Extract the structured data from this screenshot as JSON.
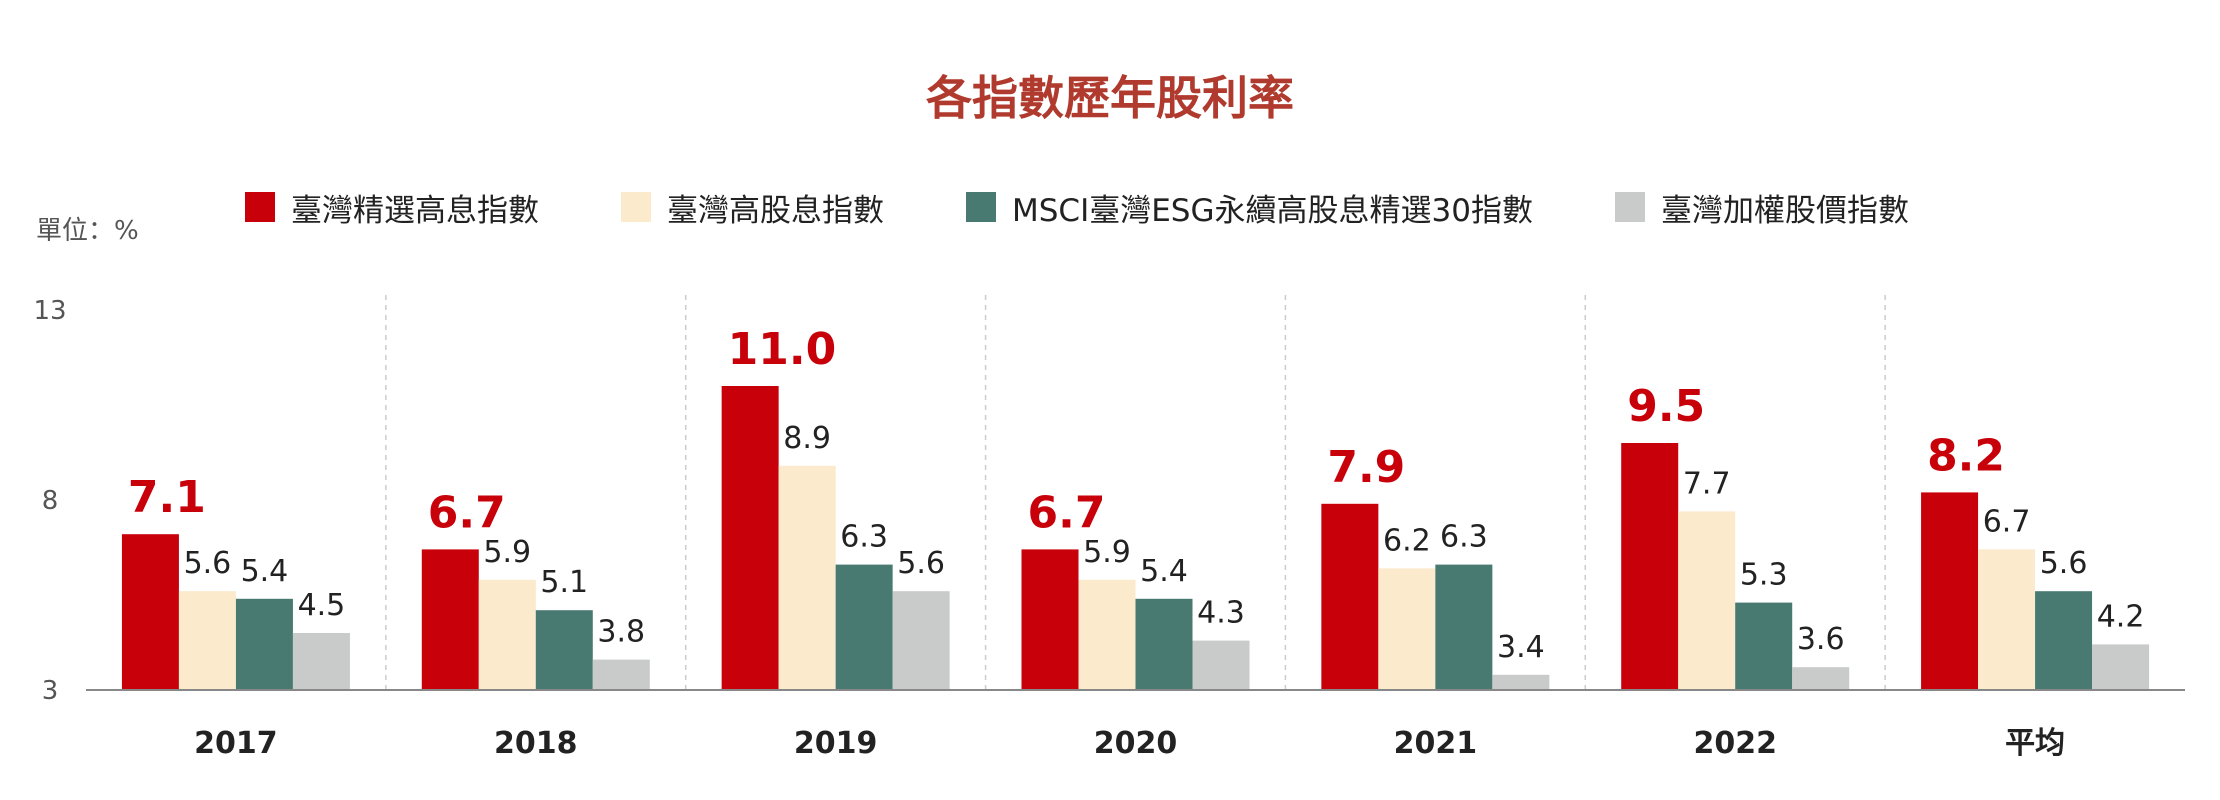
{
  "title": "各指數歷年股利率",
  "unit_label": "單位：%",
  "colors": {
    "title": "#B03A2E",
    "axis": "#888888",
    "grid": "#cccccc",
    "label_default": "#222222",
    "label_highlight": "#C8000A"
  },
  "chart_data": {
    "type": "bar",
    "title": "各指數歷年股利率",
    "ylabel": "單位：%",
    "ylim": [
      3,
      13
    ],
    "yticks": [
      "3",
      "8",
      "13"
    ],
    "categories": [
      "2017",
      "2018",
      "2019",
      "2020",
      "2021",
      "2022",
      "平均"
    ],
    "legend_position": "top",
    "series": [
      {
        "name": "臺灣精選高息指數",
        "color": "#C8000A",
        "values": [
          7.1,
          6.7,
          11.0,
          6.7,
          7.9,
          9.5,
          8.2
        ],
        "labels": [
          "7.1",
          "6.7",
          "11.0",
          "6.7",
          "7.9",
          "9.5",
          "8.2"
        ]
      },
      {
        "name": "臺灣高股息指數",
        "color": "#FBEACB",
        "values": [
          5.6,
          5.9,
          8.9,
          5.9,
          6.2,
          7.7,
          6.7
        ],
        "labels": [
          "5.6",
          "5.9",
          "8.9",
          "5.9",
          "6.2",
          "7.7",
          "6.7"
        ]
      },
      {
        "name": "MSCI臺灣ESG永續高股息精選30指數",
        "color": "#487A71",
        "values": [
          5.4,
          5.1,
          6.3,
          5.4,
          6.3,
          5.3,
          5.6
        ],
        "labels": [
          "5.4",
          "5.1",
          "6.3",
          "5.4",
          "6.3",
          "5.3",
          "5.6"
        ]
      },
      {
        "name": "臺灣加權股價指數",
        "color": "#C9CACA",
        "values": [
          4.5,
          3.8,
          5.6,
          4.3,
          3.4,
          3.6,
          4.2
        ],
        "labels": [
          "4.5",
          "3.8",
          "5.6",
          "4.3",
          "3.4",
          "3.6",
          "4.2"
        ]
      }
    ]
  }
}
